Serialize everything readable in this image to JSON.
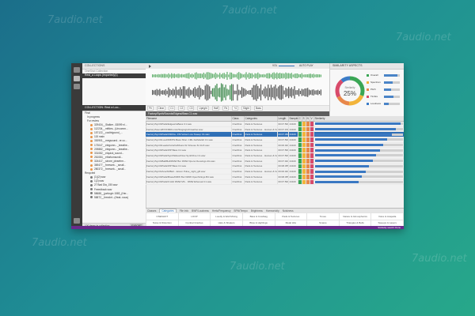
{
  "watermark": "7audio.net",
  "sidebar": {
    "header": "COLLECTIONS",
    "subheader": "OneShot Collection",
    "selected_item": "Rest_a Loops (Imported)(1)",
    "collection_bar": "COLLECTION: Rest a Loo...",
    "tree": [
      {
        "label": "Final",
        "kind": "folder"
      },
      {
        "label": "In progress",
        "kind": "folder"
      },
      {
        "label": "For review",
        "kind": "folder"
      }
    ],
    "files": [
      "329434__Stalker...53099 nl...",
      "112234__mffdes...(Uncomm...",
      "157122__cooltrigound_...",
      "115 main",
      "330901__megsound...re co...",
      "173047__elegumn..._breathe...",
      "209882__elegumn..._breathe...",
      "331082__etquick_sound...",
      "261084__ettorkonsundi...",
      "324417__sirone_pinsetrm...",
      "369477__freeweb..._small...",
      "280372__freeweb..._small..."
    ],
    "tree2_label": "Recycled",
    "extra": [
      "(1)(2).wav",
      "1(2).wav",
      "27 Bad Dia_150.wav",
      "Feeedback.wav",
      "58688__jpzfurgin 1583_(Her...",
      "58872__freezlet...(Heat..nous)"
    ],
    "footer": "100 items in collection",
    "footer_button": "EXPORT"
  },
  "transport": {
    "vol_label": "VOL",
    "autoplay": "AUTO PLAY",
    "path": "Factory/Synth/Sounds/Edgewi/Bass C1.wav",
    "zoom": [
      "Fit",
      "Clear",
      "C1",
      "C2",
      "C3",
      "Upright",
      "Half",
      "Rx",
      "+4",
      "Slight",
      "Bass"
    ],
    "tag": "Bass (A1) Bass"
  },
  "similarity": {
    "header": "SIMILARITY ASPECTS",
    "center_label": "Similarity",
    "center_value": "25%",
    "aspects": [
      {
        "name": "Overall",
        "color": "#3aa655",
        "value": 0.85
      },
      {
        "name": "Spectrum",
        "color": "#f2b43a",
        "value": 0.55
      },
      {
        "name": "Pitch",
        "color": "#e8884a",
        "value": 0.45
      },
      {
        "name": "Timbre",
        "color": "#d84b6a",
        "value": 0.6
      },
      {
        "name": "Loudness",
        "color": "#3b7cc7",
        "value": 0.3
      }
    ]
  },
  "table": {
    "columns": [
      "Filename",
      "Class",
      "Categories",
      "Length",
      "Samples",
      "C",
      "S",
      "N",
      "V",
      "Similarity"
    ],
    "rows": [
      {
        "name": "Factory/Synth/Pads/EdgewireBass C1.wav",
        "cls": "OneShot",
        "cat": "Pads & Textures",
        "len": "00:07.500",
        "sr": "44100",
        "sim": 0.98,
        "hi": false
      },
      {
        "name": "Factory/Sound/FX/FMRnomic/SingingUnbreather.wav",
        "cls": "OneShot",
        "cat": "Pads & Textures · Human & Vocal",
        "len": "00:07.150",
        "sr": "44100",
        "sim": 0.92,
        "hi": false
      },
      {
        "name": "Factory/Synth/Pads/FM/Cla...FM Velvet Low Sweep C1.wav",
        "cls": "OneShot",
        "cat": "Pads & Textures",
        "len": "00:07.350",
        "sr": "44100",
        "sim": 0.88,
        "hi": true
      },
      {
        "name": "Factory/Synth/Loud/FM/Phi Bass Shar. CML Fathdark2 C1.wav",
        "cls": "OneShot",
        "cat": "Pads & Textures",
        "len": "00:07.500",
        "sr": "44100",
        "sim": 0.82,
        "hi": false
      },
      {
        "name": "Factory/Synth/Leads/Colorful/Music-W Virtuoso 6t CHX.wav",
        "cls": "OneShot",
        "cat": "Pads & Textures",
        "len": "00:06.021",
        "sr": "44100",
        "sim": 0.78,
        "hi": false
      },
      {
        "name": "Factory/Synth/Pads/WP Bass C1.wav",
        "cls": "OneShot",
        "cat": "Pads & Textures",
        "len": "00:07.500",
        "sr": "44100",
        "sim": 0.74,
        "hi": false
      },
      {
        "name": "Factory/Synth/Pads/SynthWave/Flow SynthOne C1.wav",
        "cls": "OneShot",
        "cat": "Pads & Textures · Human & Vocal",
        "len": "00:07.500",
        "sr": "44100",
        "sim": 0.7,
        "hi": false
      },
      {
        "name": "Factory/Synth/Ball/Bell/DMW Bur DMW Opera Cleosings AG.wav",
        "cls": "OneShot",
        "cat": "Pads & Textures",
        "len": "00:07.921",
        "sr": "44100",
        "sim": 0.66,
        "hi": false
      },
      {
        "name": "Factory/Synth/Pads/WP Bass C1.wav",
        "cls": "OneShot",
        "cat": "Pads & Textures",
        "len": "00:08.355",
        "sr": "44100",
        "sim": 0.62,
        "hi": false
      },
      {
        "name": "Factory/Synth/Ace/Alt/Bell...Jetson Pulse_night_gift.wav",
        "cls": "OneShot",
        "cat": "Pads & Textures · Human & Vocal",
        "len": "00:06.021",
        "sr": "44100",
        "sim": 0.58,
        "hi": false
      },
      {
        "name": "Factory/Synth/Pads/Brass/DMW Bur DMW OpenStrings B4.wav",
        "cls": "OneShot",
        "cat": "Pads & Textures",
        "len": "00:08.355",
        "sr": "44100",
        "sim": 0.54,
        "hi": false
      },
      {
        "name": "Factory/Synth/Pads/Fm/HI DMW Mh... DMW Ethereal C1.wav",
        "cls": "OneShot",
        "cat": "Pads & Textures",
        "len": "00:07.500",
        "sr": "44100",
        "sim": 0.5,
        "hi": false
      }
    ]
  },
  "category_tabs": [
    "Classes",
    "Categories",
    "File Info",
    "BWF/Loudness",
    "Hertz/Frequency",
    "BPM/Tempo",
    "Brightness",
    "Harmonicity",
    "Noisiness"
  ],
  "category_tab_active": "Categories",
  "categories": [
    [
      "ONESHOT",
      "LOOP",
      "Loudly & Well Mixing",
      "Bass & Cowbtag",
      "Pads & Textures",
      "Tones",
      "Nature & Atmospherics",
      "Voice & Acapella"
    ],
    [
      "Noise & Distortion",
      "Cymbal Crashes",
      "Hats & Shakers",
      "Blips & Highlings",
      "Metal Hits",
      "Snares",
      "Triangles & Bells",
      "Sweeps & Lasers"
    ],
    [
      "Stabs & Orch. Hits",
      "Benges & Lunges",
      "Explosions & Birds",
      "Wood Hits",
      "Kicks",
      "Cymbal Hikes",
      "Cracks & Rustle",
      "Vinyl Scratches"
    ],
    [
      "Whooshes & Whips",
      "Elkonlop & Gates",
      "Claps",
      "Zaps & Edge",
      "",
      "",
      "",
      ""
    ]
  ],
  "status": "Similarity search: Done"
}
